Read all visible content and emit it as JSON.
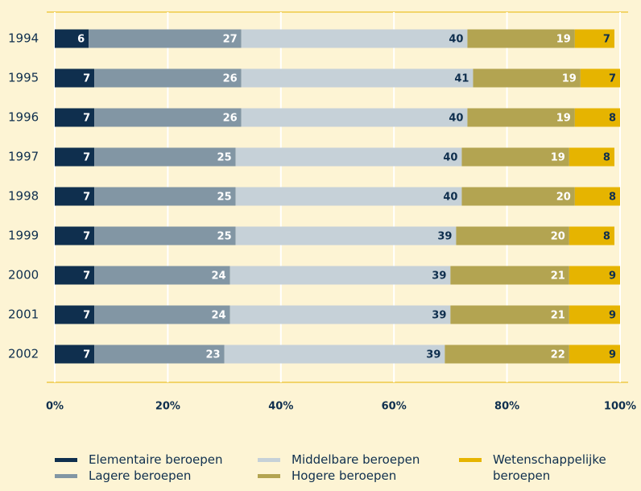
{
  "chart_data": {
    "type": "stacked-bar-horizontal",
    "categories": [
      "1994",
      "1995",
      "1996",
      "1997",
      "1998",
      "1999",
      "2000",
      "2001",
      "2002"
    ],
    "series": [
      {
        "name": "Elementaire beroepen",
        "color": "#0f2f4e",
        "label_color": "#ffffff",
        "values": [
          6,
          7,
          7,
          7,
          7,
          7,
          7,
          7,
          7
        ]
      },
      {
        "name": "Lagere beroepen",
        "color": "#8296a4",
        "label_color": "#ffffff",
        "values": [
          27,
          26,
          26,
          25,
          25,
          25,
          24,
          24,
          23
        ]
      },
      {
        "name": "Middelbare beroepen",
        "color": "#c6d1d8",
        "label_color": "#0f2f4e",
        "values": [
          40,
          41,
          40,
          40,
          40,
          39,
          39,
          39,
          39
        ]
      },
      {
        "name": "Hogere beroepen",
        "color": "#b3a451",
        "label_color": "#ffffff",
        "values": [
          19,
          19,
          19,
          19,
          20,
          20,
          21,
          21,
          22
        ]
      },
      {
        "name": "Wetenschappelijke beroepen",
        "color": "#e6b400",
        "label_color": "#0f2f4e",
        "values": [
          7,
          7,
          8,
          8,
          8,
          8,
          9,
          9,
          9
        ]
      }
    ],
    "xlim": [
      0,
      100
    ],
    "xticks": [
      {
        "value": 0,
        "label": "0%"
      },
      {
        "value": 20,
        "label": "20%"
      },
      {
        "value": 40,
        "label": "40%"
      },
      {
        "value": 60,
        "label": "60%"
      },
      {
        "value": 80,
        "label": "80%"
      },
      {
        "value": 100,
        "label": "100%"
      }
    ],
    "grid": true
  }
}
